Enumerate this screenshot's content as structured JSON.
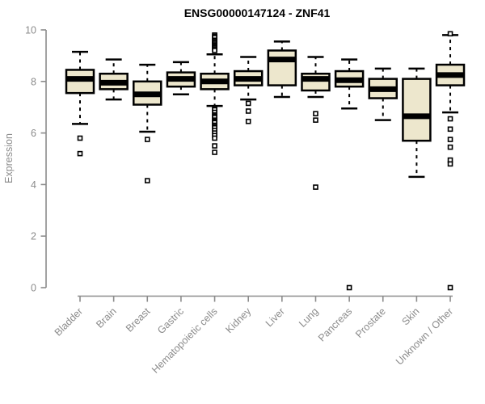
{
  "chart_data": {
    "type": "boxplot",
    "title": "ENSG00000147124 - ZNF41",
    "ylabel": "Expression",
    "xlabel": "",
    "ylim": [
      0,
      10
    ],
    "yticks": [
      0,
      2,
      4,
      6,
      8,
      10
    ],
    "grid": false,
    "legend": false,
    "categories": [
      "Bladder",
      "Brain",
      "Breast",
      "Gastric",
      "Hematopoietic cells",
      "Kidney",
      "Liver",
      "Lung",
      "Pancreas",
      "Prostate",
      "Skin",
      "Unknown / Other"
    ],
    "series": [
      {
        "category": "Bladder",
        "whisker_low": 6.35,
        "q1": 7.55,
        "median": 8.1,
        "q3": 8.45,
        "whisker_high": 9.15,
        "outliers": [
          5.8,
          5.2
        ]
      },
      {
        "category": "Brain",
        "whisker_low": 7.3,
        "q1": 7.7,
        "median": 7.95,
        "q3": 8.3,
        "whisker_high": 8.85,
        "outliers": []
      },
      {
        "category": "Breast",
        "whisker_low": 6.05,
        "q1": 7.1,
        "median": 7.5,
        "q3": 8.0,
        "whisker_high": 8.65,
        "outliers": [
          5.75,
          4.15
        ]
      },
      {
        "category": "Gastric",
        "whisker_low": 7.5,
        "q1": 7.8,
        "median": 8.1,
        "q3": 8.35,
        "whisker_high": 8.75,
        "outliers": []
      },
      {
        "category": "Hematopoietic cells",
        "whisker_low": 7.05,
        "q1": 7.7,
        "median": 8.0,
        "q3": 8.3,
        "whisker_high": 9.05,
        "outliers": [
          9.8,
          9.75,
          9.7,
          9.6,
          9.55,
          9.5,
          9.45,
          9.4,
          9.35,
          9.3,
          9.25,
          9.2,
          6.95,
          6.9,
          6.8,
          6.7,
          6.65,
          6.6,
          6.5,
          6.45,
          6.4,
          6.3,
          6.25,
          6.2,
          6.1,
          6.0,
          5.9,
          5.8,
          5.5,
          5.25
        ]
      },
      {
        "category": "Kidney",
        "whisker_low": 7.3,
        "q1": 7.85,
        "median": 8.1,
        "q3": 8.4,
        "whisker_high": 8.95,
        "outliers": [
          7.15,
          6.85,
          6.45
        ]
      },
      {
        "category": "Liver",
        "whisker_low": 7.4,
        "q1": 7.85,
        "median": 8.85,
        "q3": 9.2,
        "whisker_high": 9.55,
        "outliers": []
      },
      {
        "category": "Lung",
        "whisker_low": 7.4,
        "q1": 7.65,
        "median": 8.1,
        "q3": 8.3,
        "whisker_high": 8.95,
        "outliers": [
          6.75,
          6.5,
          3.9
        ]
      },
      {
        "category": "Pancreas",
        "whisker_low": 6.95,
        "q1": 7.8,
        "median": 8.05,
        "q3": 8.4,
        "whisker_high": 8.85,
        "outliers": [
          0.0
        ]
      },
      {
        "category": "Prostate",
        "whisker_low": 6.5,
        "q1": 7.35,
        "median": 7.7,
        "q3": 8.1,
        "whisker_high": 8.5,
        "outliers": []
      },
      {
        "category": "Skin",
        "whisker_low": 4.3,
        "q1": 5.7,
        "median": 6.65,
        "q3": 8.1,
        "whisker_high": 8.5,
        "outliers": []
      },
      {
        "category": "Unknown / Other",
        "whisker_low": 6.8,
        "q1": 7.85,
        "median": 8.25,
        "q3": 8.65,
        "whisker_high": 9.8,
        "outliers": [
          9.85,
          6.55,
          6.15,
          5.75,
          5.45,
          4.95,
          4.8,
          0.0
        ]
      }
    ],
    "colors": {
      "box_fill": "#ede7cd",
      "box_border": "#000000",
      "median": "#000000",
      "whisker": "#000000",
      "outlier_stroke": "#000000",
      "outlier_fill": "#ffffff",
      "axis": "#8b8b8b",
      "tick_label": "#8b8b8b",
      "title": "#000000",
      "background": "#ffffff"
    }
  }
}
